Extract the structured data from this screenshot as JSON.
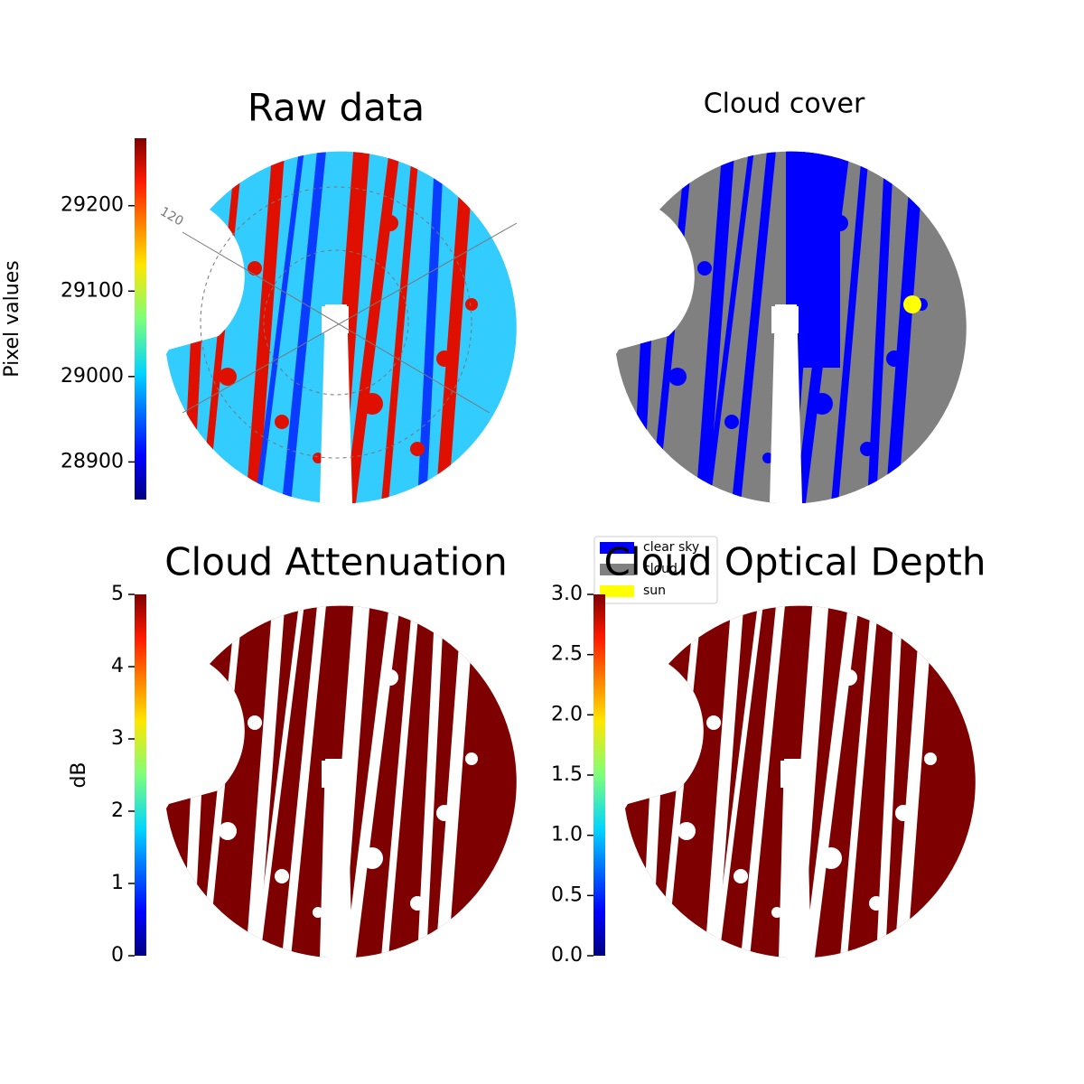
{
  "chart_data": [
    {
      "type": "image",
      "title": "Raw data",
      "colorbar_label": "Pixel values",
      "colormap": "jet",
      "ylim": [
        28856,
        29279
      ],
      "yticks": [
        28900,
        29000,
        29100,
        29200
      ],
      "annotations": [
        "120"
      ]
    },
    {
      "type": "image",
      "title": "Cloud cover",
      "legend": [
        {
          "name": "clear sky",
          "color": "#0000ff"
        },
        {
          "name": "cloud",
          "color": "#808080"
        },
        {
          "name": "sun",
          "color": "#ffff00"
        }
      ]
    },
    {
      "type": "image",
      "title": "Cloud Attenuation",
      "colorbar_label": "dB",
      "colormap": "jet",
      "ylim": [
        0,
        5
      ],
      "yticks": [
        0,
        1,
        2,
        3,
        4,
        5
      ]
    },
    {
      "type": "image",
      "title": "Cloud Optical Depth",
      "colormap": "jet",
      "ylim": [
        0,
        3
      ],
      "yticks": [
        {
          "value": 0,
          "label": "0.0"
        },
        {
          "value": 0.5,
          "label": "0.5"
        },
        {
          "value": 1,
          "label": "1.0"
        },
        {
          "value": 1.5,
          "label": "1.5"
        },
        {
          "value": 2,
          "label": "2.0"
        },
        {
          "value": 2.5,
          "label": "2.5"
        },
        {
          "value": 3,
          "label": "3.0"
        }
      ]
    }
  ]
}
